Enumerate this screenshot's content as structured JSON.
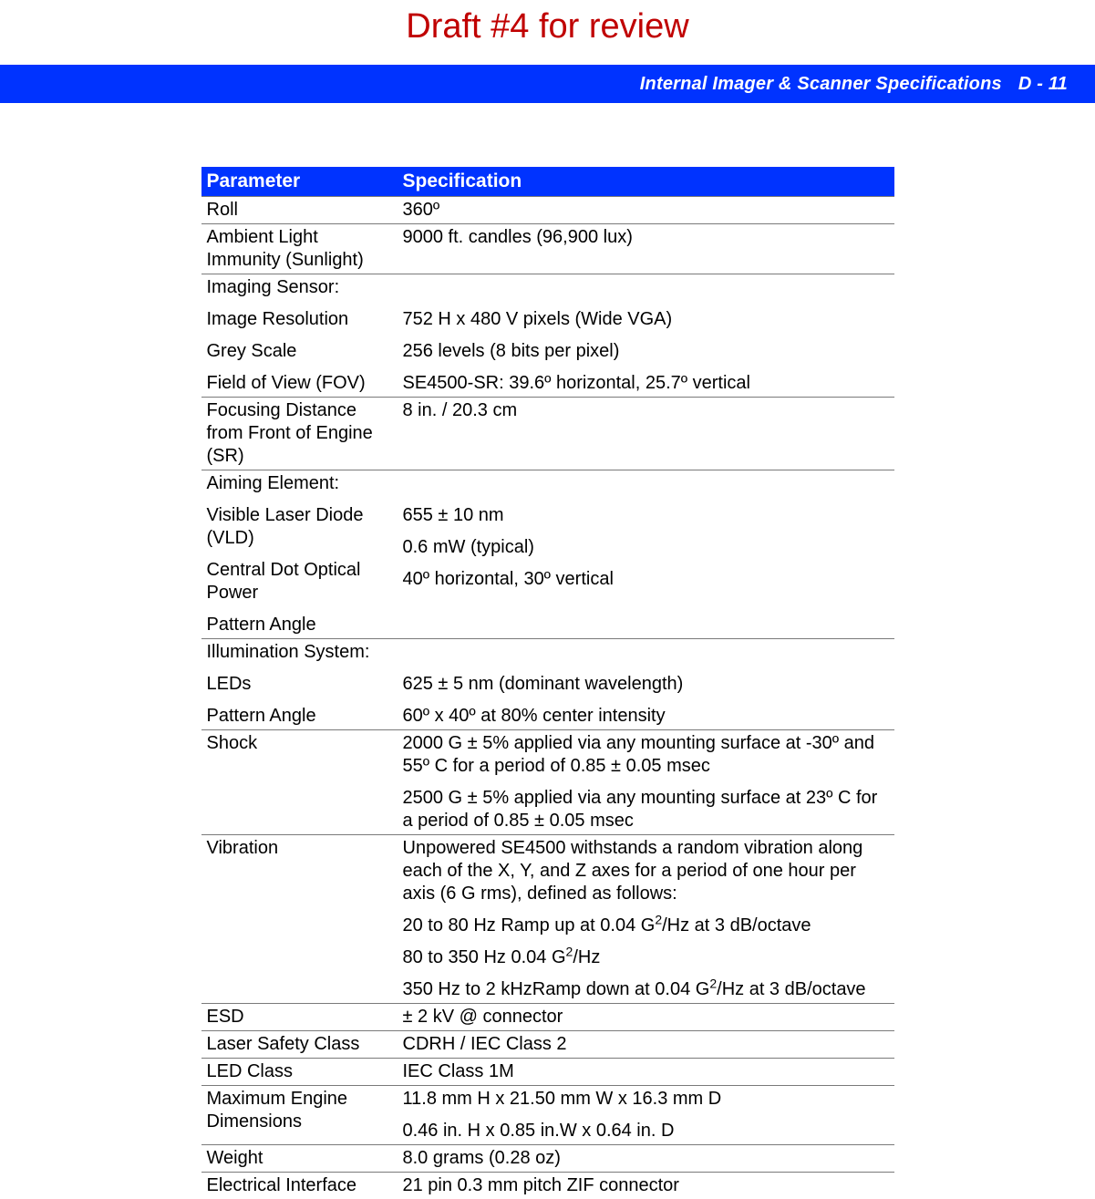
{
  "draft_title": "Draft #4 for review",
  "header": {
    "title": "Internal Imager & Scanner Specifications",
    "page": "D - 11"
  },
  "colors": {
    "header_bg": "#0033ff",
    "draft_color": "#c00000",
    "rule": "#7a7a7a"
  },
  "table": {
    "col_param": "Parameter",
    "col_spec": "Specification",
    "rows": [
      {
        "param": "Roll",
        "spec": "360º"
      },
      {
        "param": "Ambient Light Immunity (Sunlight)",
        "spec": "9000 ft. candles (96,900 lux)"
      },
      {
        "param_lines": [
          "Imaging Sensor:",
          "Image Resolution",
          "Grey Scale",
          "Field of View (FOV)"
        ],
        "spec_lines": [
          "",
          "752 H x 480 V pixels (Wide VGA)",
          "256 levels (8 bits per pixel)",
          "SE4500-SR: 39.6º horizontal, 25.7º vertical"
        ]
      },
      {
        "param": "Focusing Distance from Front of Engine (SR)",
        "spec": "8 in. / 20.3 cm"
      },
      {
        "param_lines": [
          "Aiming Element:",
          "Visible Laser Diode (VLD)",
          "Central Dot Optical Power",
          "Pattern Angle"
        ],
        "spec_lines": [
          "",
          "655 ± 10 nm",
          "0.6 mW (typical)",
          "40º horizontal, 30º vertical"
        ]
      },
      {
        "param_lines": [
          "Illumination System:",
          "LEDs",
          "Pattern Angle"
        ],
        "spec_lines": [
          "",
          "625 ± 5 nm (dominant wavelength)",
          "60º x 40º at 80% center intensity"
        ]
      },
      {
        "param": "Shock",
        "spec_paras": [
          "2000 G ± 5% applied via any mounting surface at -30º and 55º C for a period of 0.85 ± 0.05 msec",
          "2500 G ± 5% applied via any mounting surface at 23º C for a period of 0.85 ± 0.05 msec"
        ]
      },
      {
        "param": "Vibration",
        "spec_html_paras": [
          "Unpowered SE4500 withstands a random vibration along each of the X, Y, and Z axes for a period of one hour per axis (6 G rms), defined as follows:",
          "20 to 80 Hz Ramp up at 0.04 G<sup>2</sup>/Hz at 3 dB/octave",
          "80 to 350 Hz 0.04 G<sup>2</sup>/Hz",
          "350 Hz to 2 kHzRamp down at 0.04 G<sup>2</sup>/Hz at 3 dB/octave"
        ]
      },
      {
        "param": "ESD",
        "spec": "± 2 kV @ connector"
      },
      {
        "param": "Laser Safety Class",
        "spec": "CDRH / IEC Class 2"
      },
      {
        "param": "LED Class",
        "spec": "IEC Class 1M"
      },
      {
        "param": "Maximum Engine Dimensions",
        "spec_paras": [
          "11.8 mm H x 21.50 mm W x 16.3 mm D",
          "0.46 in. H x 0.85 in.W x 0.64 in. D"
        ]
      },
      {
        "param": "Weight",
        "spec": "8.0 grams (0.28 oz)"
      },
      {
        "param": "Electrical Interface",
        "spec": "21 pin 0.3 mm pitch ZIF connector"
      }
    ]
  }
}
